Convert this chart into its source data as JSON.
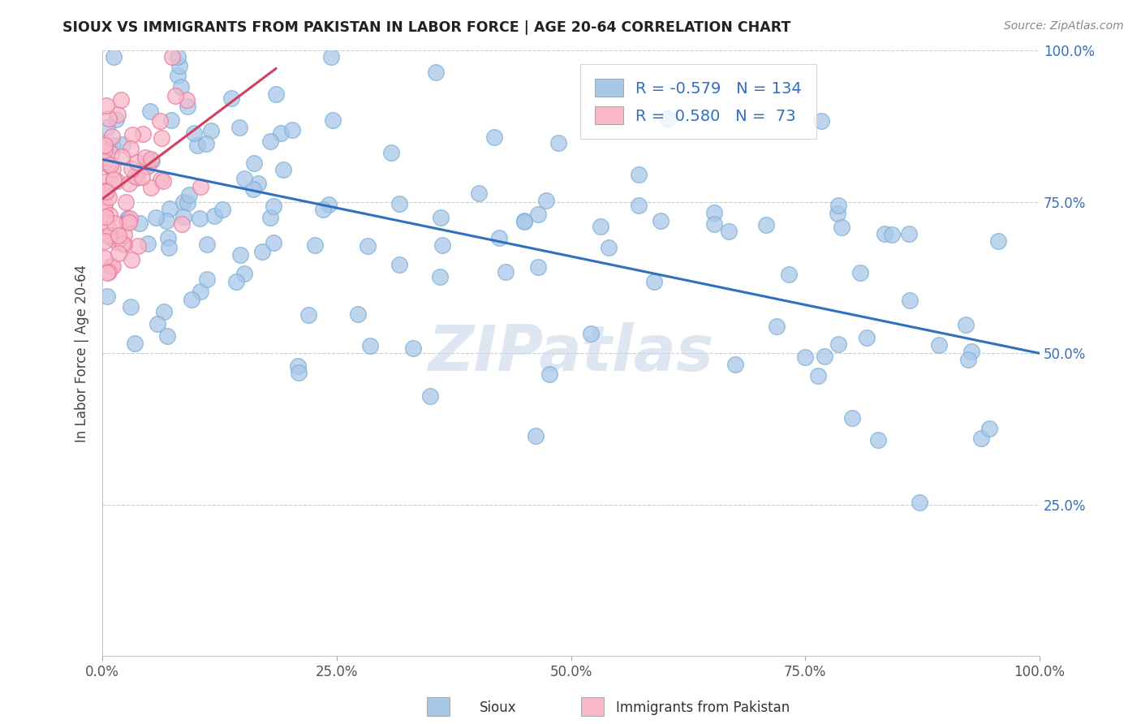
{
  "title": "SIOUX VS IMMIGRANTS FROM PAKISTAN IN LABOR FORCE | AGE 20-64 CORRELATION CHART",
  "source_text": "Source: ZipAtlas.com",
  "ylabel": "In Labor Force | Age 20-64",
  "xlim": [
    0.0,
    1.0
  ],
  "ylim": [
    0.0,
    1.0
  ],
  "xtick_labels": [
    "0.0%",
    "25.0%",
    "50.0%",
    "75.0%",
    "100.0%"
  ],
  "xtick_positions": [
    0.0,
    0.25,
    0.5,
    0.75,
    1.0
  ],
  "ytick_labels": [
    "25.0%",
    "50.0%",
    "75.0%",
    "100.0%"
  ],
  "ytick_positions": [
    0.25,
    0.5,
    0.75,
    1.0
  ],
  "blue_R": -0.579,
  "blue_N": 134,
  "pink_R": 0.58,
  "pink_N": 73,
  "blue_marker_color": "#a8c8e8",
  "blue_edge_color": "#7ab0d8",
  "pink_marker_color": "#f8b8c8",
  "pink_edge_color": "#e878a0",
  "blue_line_color": "#3070c0",
  "pink_line_color": "#d04060",
  "watermark": "ZIPatlas",
  "watermark_color": "#c8d8e8",
  "background_color": "#ffffff",
  "blue_trend_x0": 0.0,
  "blue_trend_y0": 0.82,
  "blue_trend_x1": 1.0,
  "blue_trend_y1": 0.5,
  "pink_trend_x0": 0.0,
  "pink_trend_y0": 0.755,
  "pink_trend_x1": 0.185,
  "pink_trend_y1": 0.97,
  "legend_blue_color": "#a8c8e8",
  "legend_pink_color": "#f8b8c8"
}
